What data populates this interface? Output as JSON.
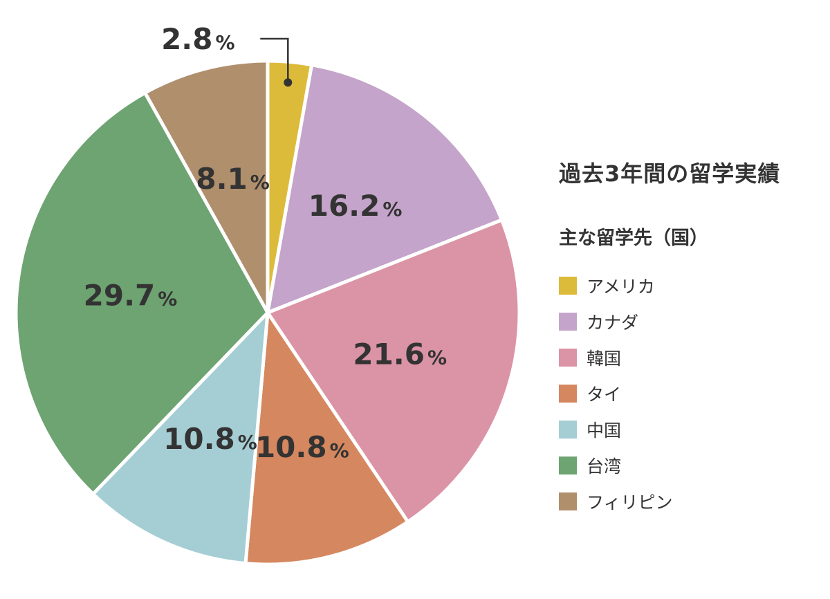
{
  "chart_data": {
    "type": "pie",
    "title": "過去3年間の留学実績",
    "legend_title": "主な留学先（国）",
    "legend_placement": "right",
    "start": "top",
    "direction": "clockwise",
    "unit": "%",
    "slices": [
      {
        "label": "アメリカ",
        "value": 2.8,
        "display": "2.8",
        "color": "#dcbb3a"
      },
      {
        "label": "カナダ",
        "value": 16.2,
        "display": "16.2",
        "color": "#c4a4ca"
      },
      {
        "label": "韓国",
        "value": 21.6,
        "display": "21.6",
        "color": "#db93a6"
      },
      {
        "label": "タイ",
        "value": 10.8,
        "display": "10.8",
        "color": "#d5875f"
      },
      {
        "label": "中国",
        "value": 10.8,
        "display": "10.8",
        "color": "#a5ced4"
      },
      {
        "label": "台湾",
        "value": 29.7,
        "display": "29.7",
        "color": "#6ea372"
      },
      {
        "label": "フィリピン",
        "value": 8.1,
        "display": "8.1",
        "color": "#b08f6d"
      }
    ]
  }
}
